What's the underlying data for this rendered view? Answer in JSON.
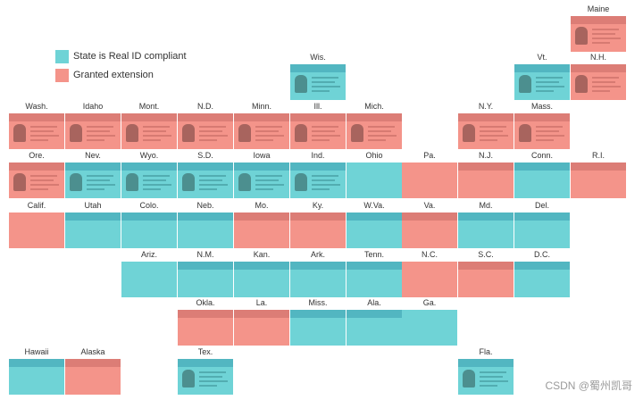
{
  "colors": {
    "compliant": "#6fd3d6",
    "extension": "#f4948a",
    "label_text": "#333333"
  },
  "legend": {
    "compliant_label": "State is Real ID compliant",
    "extension_label": "Granted extension"
  },
  "watermark": "CSDN @蜀州凯哥",
  "states": [
    {
      "abbr": "Maine",
      "status": "extension",
      "row": 0,
      "col": 10,
      "card": "photo"
    },
    {
      "abbr": "Wis.",
      "status": "compliant",
      "row": 1,
      "col": 5,
      "card": "photo"
    },
    {
      "abbr": "Vt.",
      "status": "compliant",
      "row": 1,
      "col": 9,
      "card": "photo"
    },
    {
      "abbr": "N.H.",
      "status": "extension",
      "row": 1,
      "col": 10,
      "card": "photo"
    },
    {
      "abbr": "Wash.",
      "status": "extension",
      "row": 2,
      "col": 0,
      "card": "photo"
    },
    {
      "abbr": "Idaho",
      "status": "extension",
      "row": 2,
      "col": 1,
      "card": "photo"
    },
    {
      "abbr": "Mont.",
      "status": "extension",
      "row": 2,
      "col": 2,
      "card": "photo"
    },
    {
      "abbr": "N.D.",
      "status": "extension",
      "row": 2,
      "col": 3,
      "card": "photo"
    },
    {
      "abbr": "Minn.",
      "status": "extension",
      "row": 2,
      "col": 4,
      "card": "photo"
    },
    {
      "abbr": "Ill.",
      "status": "extension",
      "row": 2,
      "col": 5,
      "card": "photo"
    },
    {
      "abbr": "Mich.",
      "status": "extension",
      "row": 2,
      "col": 6,
      "card": "photo"
    },
    {
      "abbr": "N.Y.",
      "status": "extension",
      "row": 2,
      "col": 8,
      "card": "photo"
    },
    {
      "abbr": "Mass.",
      "status": "extension",
      "row": 2,
      "col": 9,
      "card": "photo"
    },
    {
      "abbr": "Ore.",
      "status": "extension",
      "row": 3,
      "col": 0,
      "card": "photo"
    },
    {
      "abbr": "Nev.",
      "status": "compliant",
      "row": 3,
      "col": 1,
      "card": "photo"
    },
    {
      "abbr": "Wyo.",
      "status": "compliant",
      "row": 3,
      "col": 2,
      "card": "photo"
    },
    {
      "abbr": "S.D.",
      "status": "compliant",
      "row": 3,
      "col": 3,
      "card": "photo"
    },
    {
      "abbr": "Iowa",
      "status": "compliant",
      "row": 3,
      "col": 4,
      "card": "photo"
    },
    {
      "abbr": "Ind.",
      "status": "compliant",
      "row": 3,
      "col": 5,
      "card": "photo"
    },
    {
      "abbr": "Ohio",
      "status": "compliant",
      "row": 3,
      "col": 6,
      "card": "plain"
    },
    {
      "abbr": "Pa.",
      "status": "extension",
      "row": 3,
      "col": 7,
      "card": "plain"
    },
    {
      "abbr": "N.J.",
      "status": "extension",
      "row": 3,
      "col": 8,
      "card": "band"
    },
    {
      "abbr": "Conn.",
      "status": "compliant",
      "row": 3,
      "col": 9,
      "card": "band"
    },
    {
      "abbr": "R.I.",
      "status": "extension",
      "row": 3,
      "col": 10,
      "card": "band"
    },
    {
      "abbr": "Calif.",
      "status": "extension",
      "row": 4,
      "col": 0,
      "card": "plain"
    },
    {
      "abbr": "Utah",
      "status": "compliant",
      "row": 4,
      "col": 1,
      "card": "band"
    },
    {
      "abbr": "Colo.",
      "status": "compliant",
      "row": 4,
      "col": 2,
      "card": "band"
    },
    {
      "abbr": "Neb.",
      "status": "compliant",
      "row": 4,
      "col": 3,
      "card": "band"
    },
    {
      "abbr": "Mo.",
      "status": "extension",
      "row": 4,
      "col": 4,
      "card": "band"
    },
    {
      "abbr": "Ky.",
      "status": "extension",
      "row": 4,
      "col": 5,
      "card": "band"
    },
    {
      "abbr": "W.Va.",
      "status": "compliant",
      "row": 4,
      "col": 6,
      "card": "band"
    },
    {
      "abbr": "Va.",
      "status": "extension",
      "row": 4,
      "col": 7,
      "card": "band"
    },
    {
      "abbr": "Md.",
      "status": "compliant",
      "row": 4,
      "col": 8,
      "card": "band"
    },
    {
      "abbr": "Del.",
      "status": "compliant",
      "row": 4,
      "col": 9,
      "card": "band"
    },
    {
      "abbr": "Ariz.",
      "status": "compliant",
      "row": 5,
      "col": 2,
      "card": "plain"
    },
    {
      "abbr": "N.M.",
      "status": "compliant",
      "row": 5,
      "col": 3,
      "card": "band"
    },
    {
      "abbr": "Kan.",
      "status": "compliant",
      "row": 5,
      "col": 4,
      "card": "band"
    },
    {
      "abbr": "Ark.",
      "status": "compliant",
      "row": 5,
      "col": 5,
      "card": "band"
    },
    {
      "abbr": "Tenn.",
      "status": "compliant",
      "row": 5,
      "col": 6,
      "card": "band"
    },
    {
      "abbr": "N.C.",
      "status": "extension",
      "row": 5,
      "col": 7,
      "card": "plain"
    },
    {
      "abbr": "S.C.",
      "status": "extension",
      "row": 5,
      "col": 8,
      "card": "band"
    },
    {
      "abbr": "D.C.",
      "status": "compliant",
      "row": 5,
      "col": 9,
      "card": "band"
    },
    {
      "abbr": "Okla.",
      "status": "extension",
      "row": 6,
      "col": 3,
      "card": "band"
    },
    {
      "abbr": "La.",
      "status": "extension",
      "row": 6,
      "col": 4,
      "card": "band"
    },
    {
      "abbr": "Miss.",
      "status": "compliant",
      "row": 6,
      "col": 5,
      "card": "band"
    },
    {
      "abbr": "Ala.",
      "status": "compliant",
      "row": 6,
      "col": 6,
      "card": "band"
    },
    {
      "abbr": "Ga.",
      "status": "compliant",
      "row": 6,
      "col": 7,
      "card": "plain"
    },
    {
      "abbr": "Hawaii",
      "status": "compliant",
      "row": 7,
      "col": 0,
      "card": "band"
    },
    {
      "abbr": "Alaska",
      "status": "extension",
      "row": 7,
      "col": 1,
      "card": "band"
    },
    {
      "abbr": "Tex.",
      "status": "compliant",
      "row": 7,
      "col": 3,
      "card": "photo"
    },
    {
      "abbr": "Fla.",
      "status": "compliant",
      "row": 7,
      "col": 8,
      "card": "photo"
    }
  ]
}
